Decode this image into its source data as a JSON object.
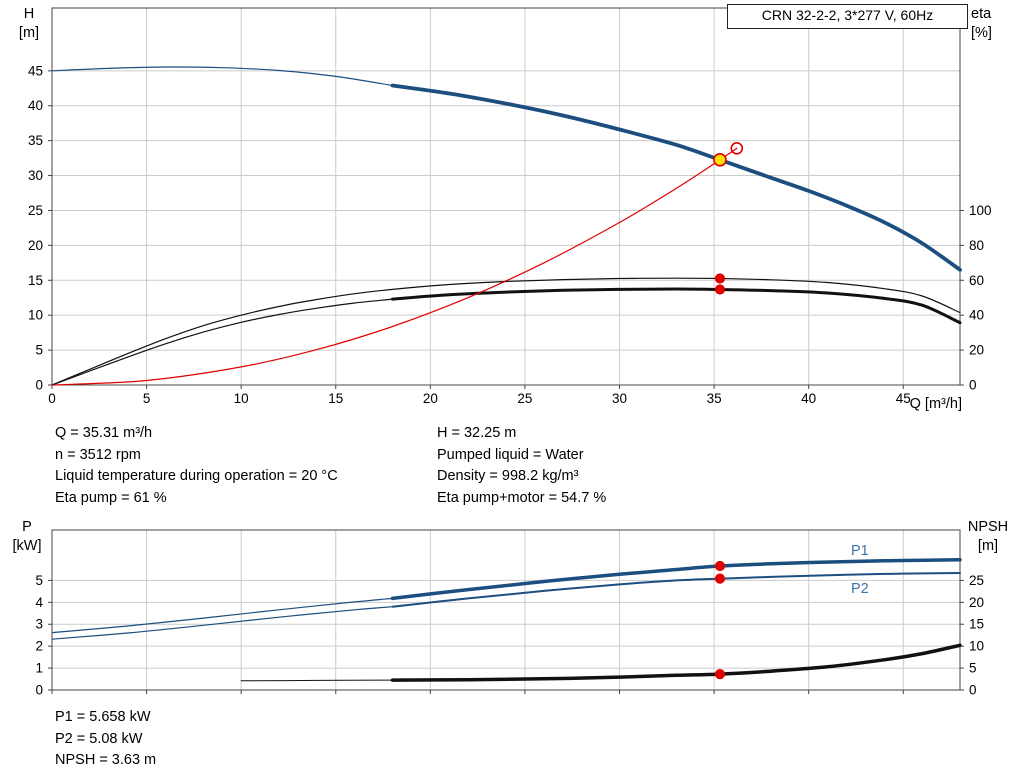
{
  "colors": {
    "curve_blue": "#1c4e80",
    "curve_black": "#111111",
    "curve_red": "#e00000",
    "duty_yellow": "#ffe000",
    "label_blue": "#3a75a8",
    "grid": "#cccccc",
    "axis": "#444444"
  },
  "info": {
    "left": [
      "Q = 35.31 m³/h",
      "n = 3512 rpm",
      "Liquid temperature during operation = 20 °C",
      "Eta pump = 61 %"
    ],
    "right": [
      "H = 32.25 m",
      "Pumped liquid = Water",
      "Density = 998.2 kg/m³",
      "Eta pump+motor = 54.7 %"
    ]
  },
  "results": [
    "P1 = 5.658 kW",
    "P2 = 5.08 kW",
    "NPSH = 3.63 m"
  ],
  "chart_data": [
    {
      "type": "line",
      "title": "CRN 32-2-2, 3*277 V, 60Hz",
      "x_axis": {
        "label": "Q [m³/h]",
        "min": 0,
        "max": 48,
        "ticks": [
          0,
          5,
          10,
          15,
          20,
          25,
          30,
          35,
          40,
          45
        ],
        "show_labels": true
      },
      "y_left": {
        "name": "H",
        "unit": "[m]",
        "min": 0,
        "max": 54,
        "ticks": [
          0,
          5,
          10,
          15,
          20,
          25,
          30,
          35,
          40,
          45
        ]
      },
      "y_right": {
        "name": "eta",
        "unit": "[%]",
        "ratio": 4,
        "ticks": [
          0,
          20,
          40,
          60,
          80,
          100
        ]
      },
      "series": [
        {
          "name": "pump-curve-full-range",
          "axis": "left",
          "color": "#1c4e80",
          "width": 1.2,
          "points": [
            [
              0,
              45.0
            ],
            [
              3,
              45.35
            ],
            [
              6,
              45.55
            ],
            [
              9,
              45.45
            ],
            [
              12,
              45.05
            ],
            [
              15,
              44.2
            ],
            [
              18,
              42.9
            ]
          ]
        },
        {
          "name": "pump-curve",
          "axis": "left",
          "color": "#1c4e80",
          "width": 3.8,
          "points": [
            [
              18,
              42.9
            ],
            [
              21,
              41.75
            ],
            [
              24,
              40.3
            ],
            [
              27,
              38.6
            ],
            [
              30,
              36.6
            ],
            [
              33,
              34.4
            ],
            [
              35.31,
              32.25
            ],
            [
              38,
              29.7
            ],
            [
              40,
              27.8
            ],
            [
              42,
              25.7
            ],
            [
              44,
              23.3
            ],
            [
              46,
              20.3
            ],
            [
              48,
              16.5
            ]
          ]
        },
        {
          "name": "eta-pump-curve",
          "axis": "right",
          "color": "#111111",
          "width": 1.2,
          "points": [
            [
              0,
              0
            ],
            [
              2,
              9
            ],
            [
              4,
              18
            ],
            [
              6,
              26.5
            ],
            [
              8,
              34
            ],
            [
              10,
              40
            ],
            [
              12,
              45
            ],
            [
              14,
              49
            ],
            [
              16,
              52.3
            ],
            [
              18,
              54.8
            ],
            [
              21,
              57.6
            ],
            [
              24,
              59.3
            ],
            [
              27,
              60.4
            ],
            [
              30,
              61
            ],
            [
              33,
              61.2
            ],
            [
              35.31,
              61
            ],
            [
              38,
              60.3
            ],
            [
              41,
              58.7
            ],
            [
              44,
              55.2
            ],
            [
              46,
              51
            ],
            [
              48,
              41.5
            ]
          ]
        },
        {
          "name": "eta-pump-motor-curve-full-range",
          "axis": "right",
          "color": "#111111",
          "width": 1.2,
          "points": [
            [
              0,
              0
            ],
            [
              2,
              8
            ],
            [
              4,
              16
            ],
            [
              6,
              23.6
            ],
            [
              8,
              30.3
            ],
            [
              10,
              35.9
            ],
            [
              12,
              40.4
            ],
            [
              14,
              44
            ],
            [
              16,
              47
            ],
            [
              18,
              49.2
            ]
          ]
        },
        {
          "name": "eta-pump-motor-curve",
          "axis": "right",
          "color": "#111111",
          "width": 3,
          "points": [
            [
              18,
              49.2
            ],
            [
              21,
              51.7
            ],
            [
              24,
              53.2
            ],
            [
              27,
              54.3
            ],
            [
              30,
              54.8
            ],
            [
              33,
              55.0
            ],
            [
              35.31,
              54.7
            ],
            [
              38,
              54.1
            ],
            [
              41,
              52.7
            ],
            [
              44,
              49.6
            ],
            [
              46,
              45.7
            ],
            [
              48,
              35.7
            ]
          ]
        },
        {
          "name": "duty-parabola",
          "axis": "left",
          "color": "#e00000",
          "width": 1.2,
          "points": [
            [
              0,
              0
            ],
            [
              5,
              0.65
            ],
            [
              10,
              2.59
            ],
            [
              14,
              5.07
            ],
            [
              18,
              8.38
            ],
            [
              22,
              12.52
            ],
            [
              26,
              17.49
            ],
            [
              30,
              23.28
            ],
            [
              33,
              28.17
            ],
            [
              35.31,
              32.25
            ],
            [
              36.2,
              33.9
            ]
          ]
        }
      ],
      "markers": [
        {
          "name": "requested-duty-marker",
          "x": 36.2,
          "v": 33.9,
          "axis": "left",
          "r": 5.5,
          "fill": "none",
          "stroke": "#e00000",
          "sw": 1.6
        },
        {
          "name": "duty-point-marker",
          "x": 35.31,
          "v": 32.25,
          "axis": "left",
          "r": 6,
          "fill": "#ffe000",
          "stroke": "#e00000",
          "sw": 1.6
        },
        {
          "name": "eta-pump-marker",
          "x": 35.31,
          "v": 61,
          "axis": "right",
          "r": 4.6,
          "fill": "#e00000",
          "stroke": "#e00000",
          "sw": 1
        },
        {
          "name": "eta-pump-motor-marker",
          "x": 35.31,
          "v": 54.7,
          "axis": "right",
          "r": 4.6,
          "fill": "#e00000",
          "stroke": "#e00000",
          "sw": 1
        }
      ]
    },
    {
      "type": "line",
      "title": "",
      "x_axis": {
        "label": "",
        "min": 0,
        "max": 48,
        "ticks": [
          0,
          5,
          10,
          15,
          20,
          25,
          30,
          35,
          40,
          45
        ],
        "show_labels": false
      },
      "y_left": {
        "name": "P",
        "unit": "[kW]",
        "min": 0,
        "max": 7.3,
        "ticks": [
          0,
          1,
          2,
          3,
          4,
          5
        ]
      },
      "y_right": {
        "name": "NPSH",
        "unit": "[m]",
        "ratio": 5,
        "ticks": [
          0,
          5,
          10,
          15,
          20,
          25
        ]
      },
      "annotations": [
        {
          "text": "P1"
        },
        {
          "text": "P2"
        }
      ],
      "series": [
        {
          "name": "p1-curve-full-range",
          "axis": "left",
          "color": "#1c4e80",
          "width": 1.2,
          "points": [
            [
              0,
              2.62
            ],
            [
              4,
              2.92
            ],
            [
              8,
              3.28
            ],
            [
              12,
              3.66
            ],
            [
              16,
              4.02
            ],
            [
              18,
              4.18
            ]
          ]
        },
        {
          "name": "p1-curve",
          "axis": "left",
          "color": "#1c4e80",
          "width": 3.5,
          "points": [
            [
              18,
              4.18
            ],
            [
              22,
              4.58
            ],
            [
              26,
              4.95
            ],
            [
              30,
              5.28
            ],
            [
              33,
              5.5
            ],
            [
              35.31,
              5.658
            ],
            [
              38,
              5.76
            ],
            [
              42,
              5.86
            ],
            [
              45,
              5.91
            ],
            [
              48,
              5.94
            ]
          ]
        },
        {
          "name": "p2-curve-full-range",
          "axis": "left",
          "color": "#1c4e80",
          "width": 1.2,
          "points": [
            [
              0,
              2.32
            ],
            [
              4,
              2.6
            ],
            [
              8,
              2.95
            ],
            [
              12,
              3.32
            ],
            [
              16,
              3.66
            ],
            [
              18,
              3.8
            ]
          ]
        },
        {
          "name": "p2-curve",
          "axis": "left",
          "color": "#1c4e80",
          "width": 2,
          "points": [
            [
              18,
              3.8
            ],
            [
              22,
              4.18
            ],
            [
              26,
              4.52
            ],
            [
              30,
              4.82
            ],
            [
              33,
              5.0
            ],
            [
              35.31,
              5.08
            ],
            [
              38,
              5.16
            ],
            [
              42,
              5.26
            ],
            [
              45,
              5.31
            ],
            [
              48,
              5.34
            ]
          ]
        },
        {
          "name": "npsh-curve-full-range",
          "axis": "right",
          "color": "#111111",
          "width": 1,
          "points": [
            [
              10,
              2.1
            ],
            [
              14,
              2.18
            ],
            [
              18,
              2.25
            ]
          ]
        },
        {
          "name": "npsh-curve",
          "axis": "right",
          "color": "#111111",
          "width": 3.5,
          "points": [
            [
              18,
              2.25
            ],
            [
              22,
              2.35
            ],
            [
              26,
              2.55
            ],
            [
              30,
              2.95
            ],
            [
              33,
              3.35
            ],
            [
              35.31,
              3.63
            ],
            [
              38,
              4.3
            ],
            [
              41,
              5.3
            ],
            [
              44,
              6.9
            ],
            [
              46,
              8.3
            ],
            [
              48,
              10.2
            ]
          ]
        }
      ],
      "markers": [
        {
          "name": "p1-marker",
          "x": 35.31,
          "v": 5.658,
          "axis": "left",
          "r": 4.6,
          "fill": "#e00000",
          "stroke": "#e00000",
          "sw": 1
        },
        {
          "name": "p2-marker",
          "x": 35.31,
          "v": 5.08,
          "axis": "left",
          "r": 4.6,
          "fill": "#e00000",
          "stroke": "#e00000",
          "sw": 1
        },
        {
          "name": "npsh-marker",
          "x": 35.31,
          "v": 3.63,
          "axis": "right",
          "r": 4.6,
          "fill": "#e00000",
          "stroke": "#e00000",
          "sw": 1
        }
      ]
    }
  ]
}
